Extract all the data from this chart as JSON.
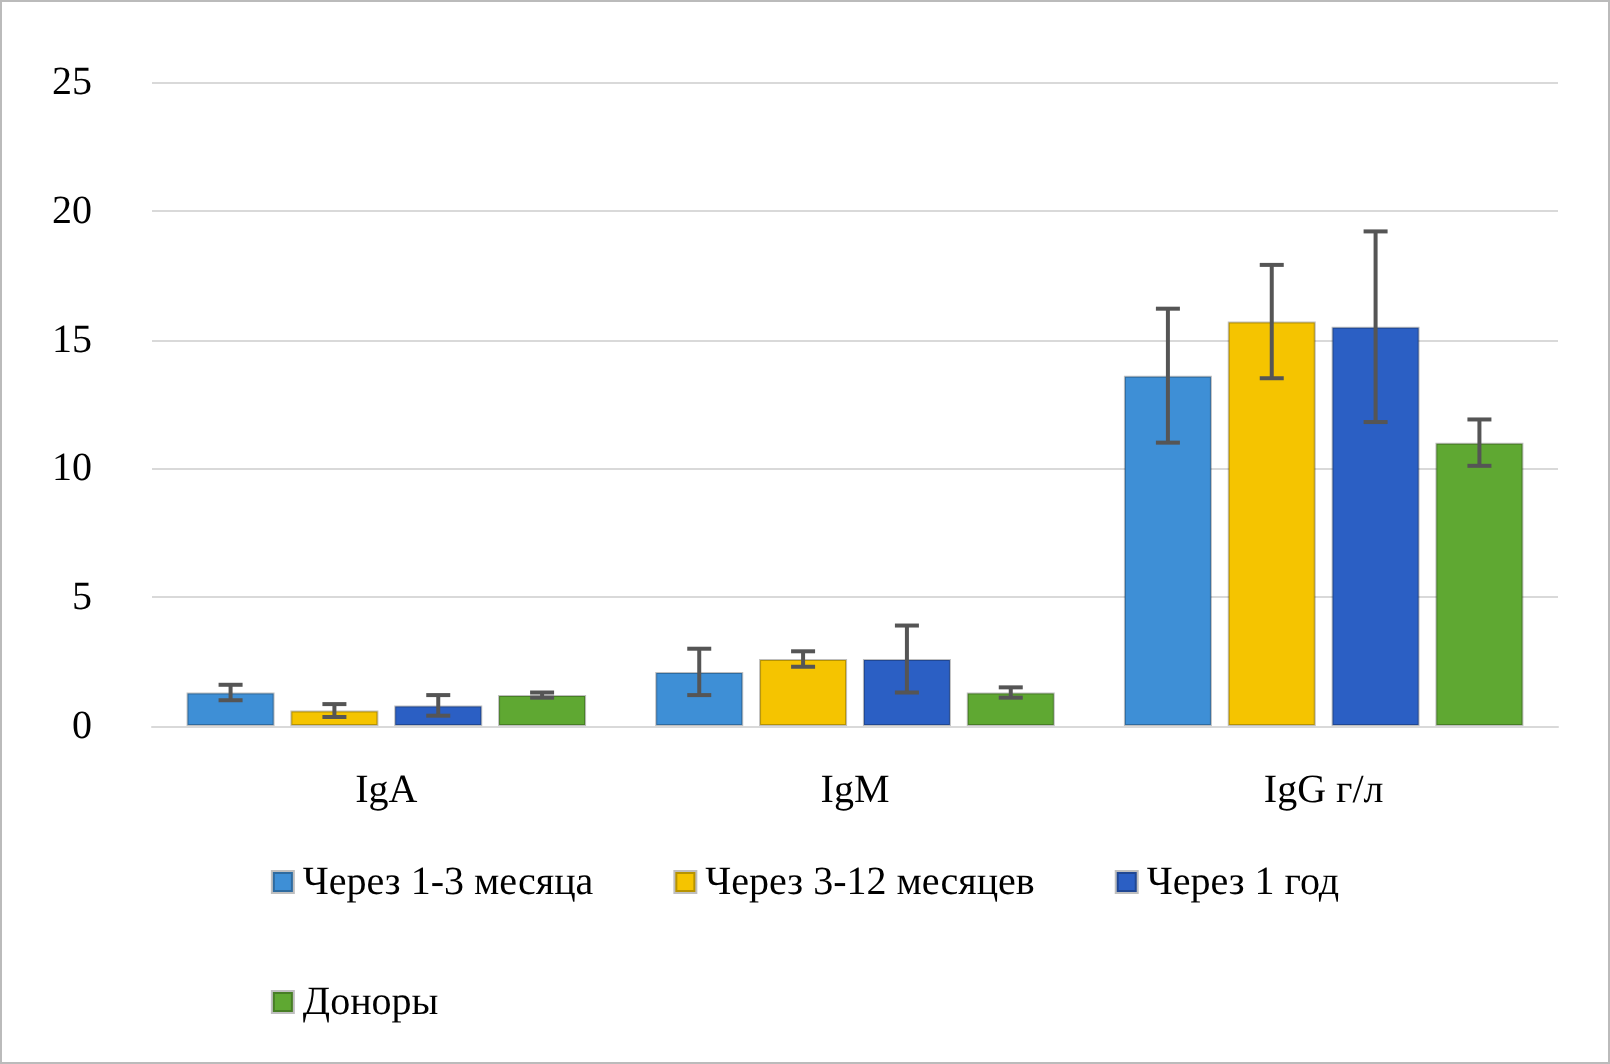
{
  "chart_data": {
    "type": "bar",
    "categories": [
      "IgA",
      "IgM",
      "IgG г/л"
    ],
    "series": [
      {
        "name": "Через 1-3 месяца",
        "color": "#3e8fd6",
        "values": [
          1.3,
          2.1,
          13.6
        ],
        "errors": [
          0.3,
          0.9,
          2.6
        ]
      },
      {
        "name": "Через 3-12 месяцев",
        "color": "#f5c400",
        "values": [
          0.6,
          2.6,
          15.7
        ],
        "errors": [
          0.25,
          0.3,
          2.2
        ]
      },
      {
        "name": "Через 1 год",
        "color": "#2b5fc4",
        "values": [
          0.8,
          2.6,
          15.5
        ],
        "errors": [
          0.4,
          1.3,
          3.7
        ]
      },
      {
        "name": "Доноры",
        "color": "#5fa832",
        "values": [
          1.2,
          1.3,
          11.0
        ],
        "errors": [
          0.1,
          0.2,
          0.9
        ]
      }
    ],
    "ylim": [
      0,
      25
    ],
    "yticks": [
      0,
      5,
      10,
      15,
      20,
      25
    ],
    "grid": "y",
    "legend": "bottom"
  }
}
